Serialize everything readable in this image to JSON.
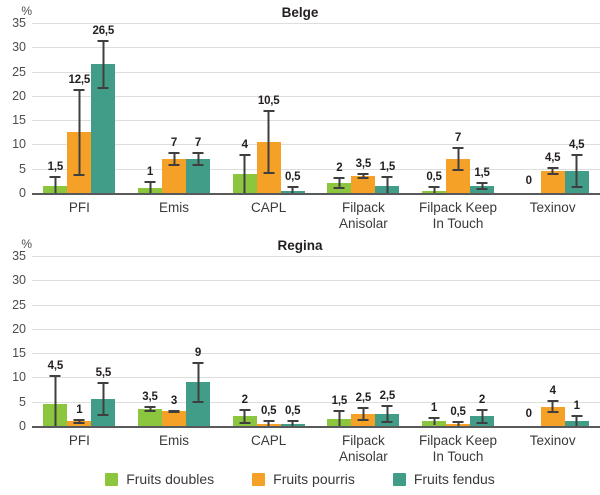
{
  "colors": {
    "background": "#FFFFFF",
    "series": [
      "#8CC63F",
      "#F5A128",
      "#419D87"
    ],
    "grid": "#DEDEDE",
    "baseline": "#58595B",
    "error_bar": "#3F3F3F",
    "tick_text": "#4D4D4D",
    "category_text": "#3A3A3A",
    "value_text": "#231F20",
    "title_text": "#231F20"
  },
  "legend": {
    "items": [
      {
        "label": "Fruits doubles",
        "color": "#8CC63F"
      },
      {
        "label": "Fruits pourris",
        "color": "#F5A128"
      },
      {
        "label": "Fruits fendus",
        "color": "#419D87"
      }
    ]
  },
  "chart_data": [
    {
      "type": "bar",
      "title": "Belge",
      "ylabel": "%",
      "ylim": [
        0,
        35
      ],
      "yticks": [
        0,
        5,
        10,
        15,
        20,
        25,
        30,
        35
      ],
      "grid": true,
      "legend_position": "bottom-shared",
      "categories": [
        "PFI",
        "Emis",
        "CAPL",
        "Filpack\nAnisolar",
        "Filpack Keep\nIn Touch",
        "Texinov"
      ],
      "series": [
        {
          "name": "Fruits doubles",
          "color": "#8CC63F",
          "values": [
            1.5,
            1,
            4,
            2,
            0.5,
            0
          ],
          "error_plus_minus": [
            2,
            1.5,
            4,
            1.2,
            1,
            0
          ],
          "labels": [
            "1,5",
            "1",
            "4",
            "2",
            "0,5",
            "0"
          ]
        },
        {
          "name": "Fruits pourris",
          "color": "#F5A128",
          "values": [
            12.5,
            7,
            10.5,
            3.5,
            7,
            4.5
          ],
          "error_plus_minus": [
            9,
            1.5,
            6.5,
            0.7,
            2.5,
            0.8
          ],
          "labels": [
            "12,5",
            "7",
            "10,5",
            "3,5",
            "7",
            "4,5"
          ]
        },
        {
          "name": "Fruits fendus",
          "color": "#419D87",
          "values": [
            26.5,
            7,
            0.5,
            1.5,
            1.5,
            4.5
          ],
          "error_plus_minus": [
            5,
            1.5,
            1,
            2,
            0.8,
            3.5
          ],
          "labels": [
            "26,5",
            "7",
            "0,5",
            "1,5",
            "1,5",
            "4,5"
          ]
        }
      ]
    },
    {
      "type": "bar",
      "title": "Regina",
      "ylabel": "%",
      "ylim": [
        0,
        35
      ],
      "yticks": [
        0,
        5,
        10,
        15,
        20,
        25,
        30,
        35
      ],
      "grid": true,
      "legend_position": "bottom-shared",
      "categories": [
        "PFI",
        "Emis",
        "CAPL",
        "Filpack\nAnisolar",
        "Filpack Keep\nIn Touch",
        "Texinov"
      ],
      "series": [
        {
          "name": "Fruits doubles",
          "color": "#8CC63F",
          "values": [
            4.5,
            3.5,
            2,
            1.5,
            1,
            0
          ],
          "error_plus_minus": [
            6,
            0.7,
            1.5,
            1.7,
            0.8,
            0
          ],
          "labels": [
            "4,5",
            "3,5",
            "2",
            "1,5",
            "1",
            "0"
          ]
        },
        {
          "name": "Fruits pourris",
          "color": "#F5A128",
          "values": [
            1,
            3,
            0.5,
            2.5,
            0.5,
            4
          ],
          "error_plus_minus": [
            0.5,
            0.3,
            0.7,
            1.5,
            0.5,
            1.3
          ],
          "labels": [
            "1",
            "3",
            "0,5",
            "2,5",
            "0,5",
            "4"
          ]
        },
        {
          "name": "Fruits fendus",
          "color": "#419D87",
          "values": [
            5.5,
            9,
            0.5,
            2.5,
            2,
            1
          ],
          "error_plus_minus": [
            3.5,
            4.2,
            0.7,
            1.8,
            1.6,
            1.2
          ],
          "labels": [
            "5,5",
            "9",
            "0,5",
            "2,5",
            "2",
            "1"
          ]
        }
      ]
    }
  ]
}
